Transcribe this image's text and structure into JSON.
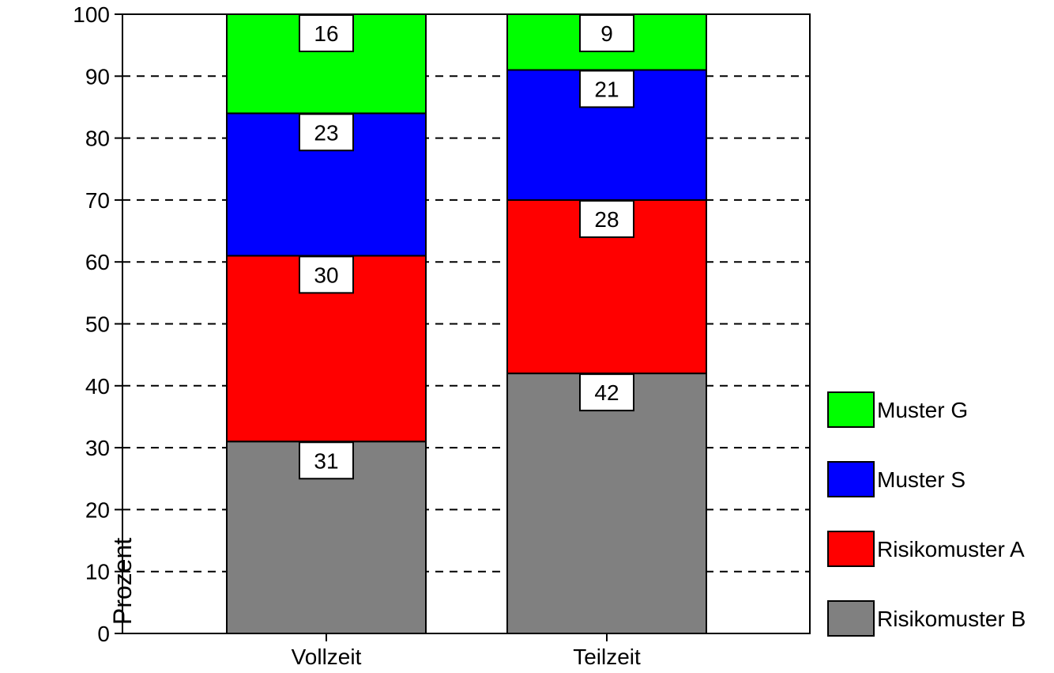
{
  "chart_data": {
    "type": "bar",
    "stacked": true,
    "title": "",
    "xlabel": "",
    "ylabel": "Prozent",
    "categories": [
      "Vollzeit",
      "Teilzeit"
    ],
    "ylim": [
      0,
      100
    ],
    "yticks": [
      0,
      10,
      20,
      30,
      40,
      50,
      60,
      70,
      80,
      90,
      100
    ],
    "grid": true,
    "legend_position": "right",
    "series": [
      {
        "name": "Risikomuster B",
        "values": [
          31,
          42
        ],
        "color": "#808080"
      },
      {
        "name": "Risikomuster A",
        "values": [
          30,
          28
        ],
        "color": "#ff0000"
      },
      {
        "name": "Muster S",
        "values": [
          23,
          21
        ],
        "color": "#0000ff"
      },
      {
        "name": "Muster G",
        "values": [
          16,
          9
        ],
        "color": "#00ff00"
      }
    ],
    "legend_order": [
      "Muster G",
      "Muster S",
      "Risikomuster A",
      "Risikomuster B"
    ]
  }
}
